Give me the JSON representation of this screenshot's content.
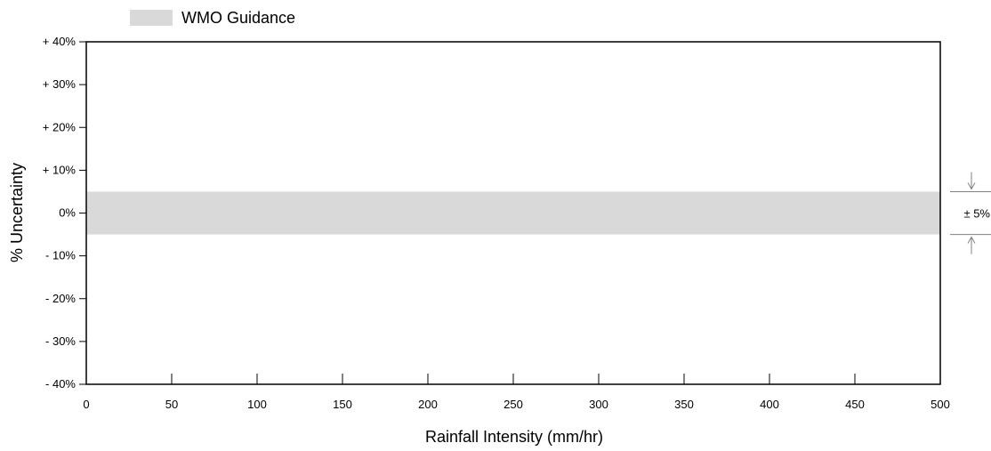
{
  "chart_data": {
    "type": "area",
    "xlabel": "Rainfall Intensity (mm/hr)",
    "ylabel": "% Uncertainty",
    "xlim": [
      0,
      500
    ],
    "ylim": [
      -40,
      40
    ],
    "x_ticks": [
      0,
      50,
      100,
      150,
      200,
      250,
      300,
      350,
      400,
      450,
      500
    ],
    "x_tick_labels": [
      "0",
      "50",
      "100",
      "150",
      "200",
      "250",
      "300",
      "350",
      "400",
      "450",
      "500"
    ],
    "y_ticks": [
      40,
      30,
      20,
      10,
      0,
      -10,
      -20,
      -30,
      -40
    ],
    "y_tick_labels": [
      "+ 40%",
      "+ 30%",
      "+ 20%",
      "+ 10%",
      "0%",
      "- 10%",
      "- 20%",
      "- 30%",
      "- 40%"
    ],
    "grid": false,
    "legend_position": "top-left",
    "series": [
      {
        "name": "WMO Guidance",
        "type": "band",
        "x": [
          0,
          500
        ],
        "lower": -5,
        "upper": 5,
        "color": "#d9d9d9"
      }
    ],
    "annotation": {
      "text": "±  5%",
      "lower": -5,
      "upper": 5
    }
  }
}
